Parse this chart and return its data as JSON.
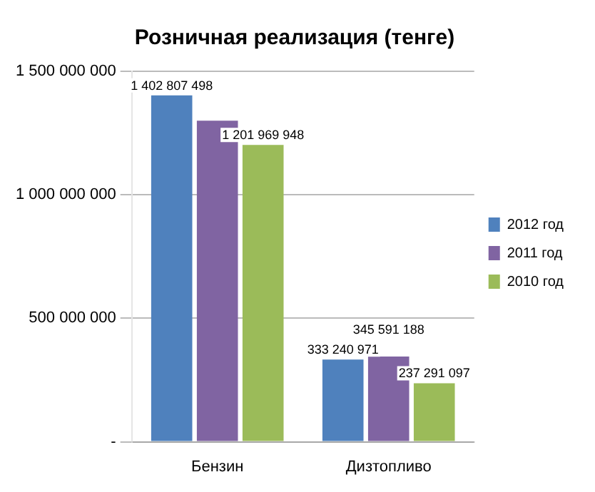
{
  "chart_data": {
    "type": "bar",
    "title": "Розничная реализация (тенге)",
    "categories": [
      "Бензин",
      "Дизтопливо"
    ],
    "series": [
      {
        "name": "2012 год",
        "color": "#4f81bd",
        "values": [
          1402807498,
          333240971
        ],
        "value_labels": [
          "1 402 807 498",
          "333 240 971"
        ]
      },
      {
        "name": "2011 год",
        "color": "#8064a2",
        "values": [
          1300000000,
          345591188
        ],
        "value_labels": [
          null,
          "345 591 188"
        ]
      },
      {
        "name": "2010 год",
        "color": "#9bbb59",
        "values": [
          1201969948,
          237291097
        ],
        "value_labels": [
          "1 201 969 948",
          "237 291 097"
        ]
      }
    ],
    "ylim": [
      0,
      1500000000
    ],
    "yticks": [
      {
        "value": 0,
        "label": "-"
      },
      {
        "value": 500000000,
        "label": "500 000 000"
      },
      {
        "value": 1000000000,
        "label": "1 000 000 000"
      },
      {
        "value": 1500000000,
        "label": "1 500 000 000"
      }
    ],
    "grid": "y",
    "legend": "right"
  }
}
